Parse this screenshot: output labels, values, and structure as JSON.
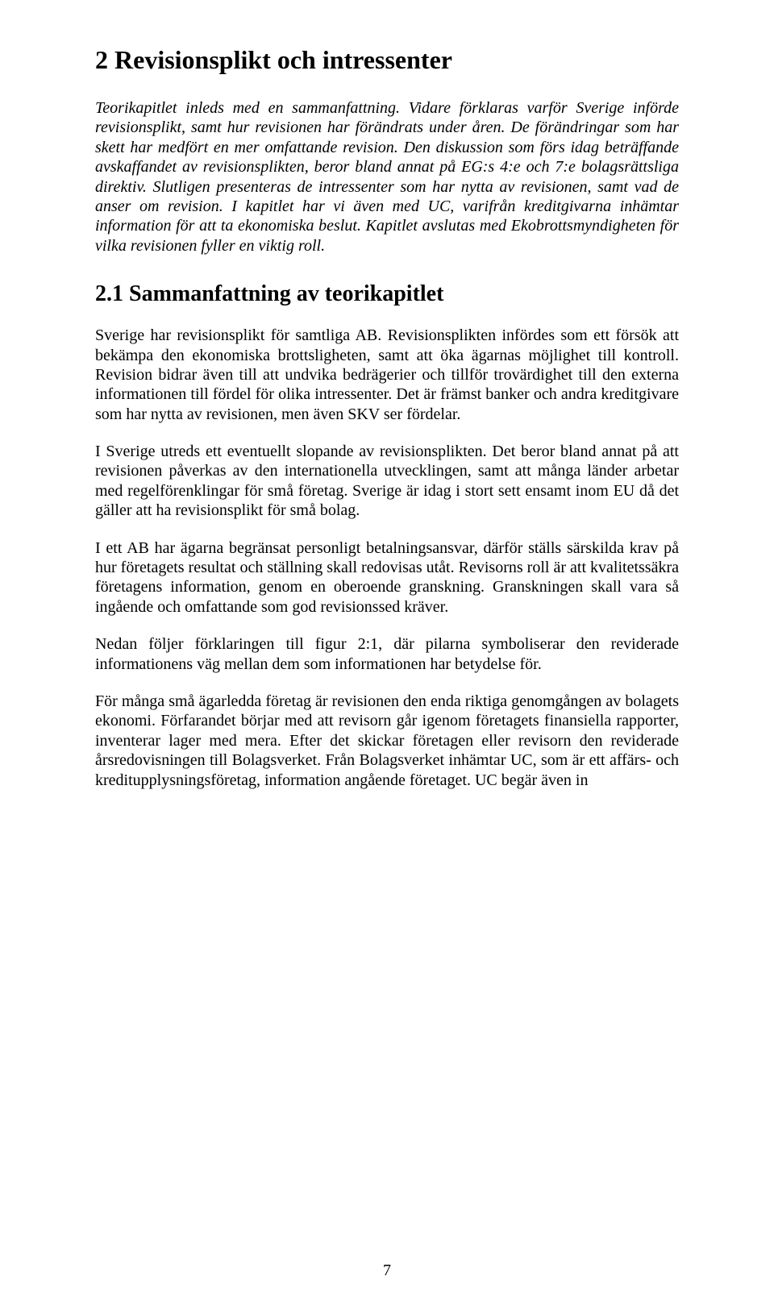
{
  "heading1": "2  Revisionsplikt och intressenter",
  "intro": "Teorikapitlet inleds med en sammanfattning. Vidare förklaras varför Sverige införde revisionsplikt, samt hur revisionen har förändrats under åren. De förändringar som har skett har medfört en mer omfattande revision. Den diskussion som förs idag beträffande avskaffandet av revisionsplikten, beror bland annat på EG:s 4:e och 7:e bolagsrättsliga direktiv. Slutligen presenteras de intressenter som har nytta av revisionen, samt vad de anser om revision. I kapitlet har vi även med UC, varifrån kreditgivarna inhämtar information för att ta ekonomiska beslut. Kapitlet avslutas med Ekobrottsmyndigheten för vilka revisionen fyller en viktig roll.",
  "heading2": "2.1   Sammanfattning av teorikapitlet",
  "p1": "Sverige har revisionsplikt för samtliga AB. Revisionsplikten infördes som ett försök att bekämpa den ekonomiska brottsligheten, samt att öka ägarnas möjlighet till kontroll. Revision bidrar även till att undvika bedrägerier och tillför trovärdighet till den externa informationen till fördel för olika intressenter. Det är främst banker och andra kreditgivare som har nytta av revisionen, men även SKV ser fördelar.",
  "p2": "I Sverige utreds ett eventuellt slopande av revisionsplikten. Det beror bland annat på att revisionen påverkas av den internationella utvecklingen, samt att många länder arbetar med regelförenklingar för små företag. Sverige är idag i stort sett ensamt inom EU då det gäller att ha revisionsplikt för små bolag.",
  "p3": "I ett AB har ägarna begränsat personligt betalningsansvar, därför ställs särskilda krav på hur företagets resultat och ställning skall redovisas utåt. Revisorns roll är att kvalitetssäkra företagens information, genom en oberoende granskning. Granskningen skall vara så ingående och omfattande som god revisionssed kräver.",
  "p4": "Nedan följer förklaringen till figur 2:1, där pilarna symboliserar den reviderade informationens väg mellan dem som informationen har betydelse för.",
  "p5": "För många små ägarledda företag är revisionen den enda riktiga genomgången av bolagets ekonomi. Förfarandet börjar med att revisorn går igenom företagets finansiella rapporter, inventerar lager med mera. Efter det skickar företagen eller revisorn den reviderade årsredovisningen till Bolagsverket. Från Bolagsverket inhämtar UC, som är ett affärs- och kreditupplysningsföretag, information angående företaget. UC begär även in",
  "pageNumber": "7",
  "colors": {
    "background": "#ffffff",
    "text": "#000000"
  },
  "typography": {
    "fontFamily": "Times New Roman",
    "h1_pt": 24,
    "h2_pt": 21,
    "body_pt": 15,
    "lineHeight": 1.22
  }
}
